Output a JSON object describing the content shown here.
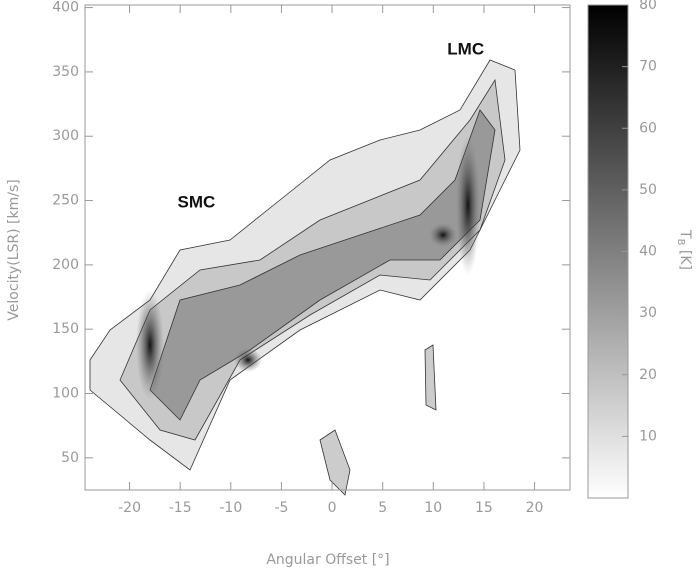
{
  "chart_data": {
    "type": "image",
    "x_label": "Angular Offset [°]",
    "y_label": "Velocity(LSR) [km/s]",
    "xlim": [
      -24.4,
      23.5
    ],
    "ylim": [
      25,
      402
    ],
    "xticks": [
      -20,
      -15,
      -10,
      -5,
      0,
      5,
      10,
      15,
      20
    ],
    "yticks": [
      50,
      100,
      150,
      200,
      250,
      300,
      350,
      400
    ],
    "annotations": [
      {
        "text": "SMC",
        "x": -13.4,
        "y": 248
      },
      {
        "text": "LMC",
        "x": 13.2,
        "y": 367
      }
    ],
    "colorbar": {
      "label": {
        "main": "T",
        "sub": "B",
        "unit": "[K]"
      },
      "lim": [
        0,
        80
      ],
      "ticks": [
        10,
        20,
        30,
        40,
        50,
        60,
        70,
        80
      ]
    }
  }
}
